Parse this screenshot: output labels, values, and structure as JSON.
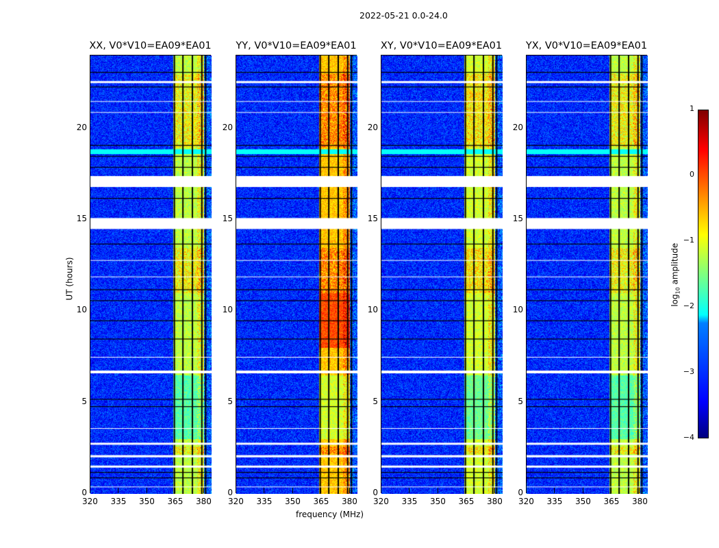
{
  "chart_data": {
    "type": "heatmap",
    "suptitle": "2022-05-21 0.0-24.0",
    "xlabel": "frequency (MHz)",
    "ylabel": "UT (hours)",
    "xlim": [
      320,
      384
    ],
    "ylim": [
      0,
      24
    ],
    "xticks": [
      "320",
      "335",
      "350",
      "365",
      "380"
    ],
    "xtick_values": [
      320,
      335,
      350,
      365,
      380
    ],
    "yticks": [
      "0",
      "5",
      "10",
      "15",
      "20"
    ],
    "ytick_values": [
      0,
      5,
      10,
      15,
      20
    ],
    "panels": [
      {
        "title": "XX, V0*V10=EA09*EA01",
        "rfi_level": -1.2
      },
      {
        "title": "YY, V0*V10=EA09*EA01",
        "rfi_level": -0.6
      },
      {
        "title": "XY, V0*V10=EA09*EA01",
        "rfi_level": -1.1
      },
      {
        "title": "YX, V0*V10=EA09*EA01",
        "rfi_level": -1.2
      }
    ],
    "background_level": -3.2,
    "rfi_band_mhz": [
      363.5,
      380
    ],
    "dark_channels_mhz": [
      364,
      368.5,
      373.5,
      378.5,
      380.5
    ],
    "flagged_hours": [
      [
        17.4,
        16.8
      ],
      [
        14.5,
        15.1
      ],
      [
        6.6,
        6.75
      ],
      [
        2.0,
        2.12
      ],
      [
        22.5,
        22.6
      ],
      [
        1.5,
        1.55
      ],
      [
        2.7,
        2.8
      ]
    ],
    "colorbar": {
      "label": "log10 amplitude",
      "range": [
        -4,
        1
      ],
      "ticks": [
        "−4",
        "−3",
        "−2",
        "−1",
        "0",
        "1"
      ],
      "tick_values": [
        -4,
        -3,
        -2,
        -1,
        0,
        1
      ],
      "colormap": "jet"
    }
  }
}
